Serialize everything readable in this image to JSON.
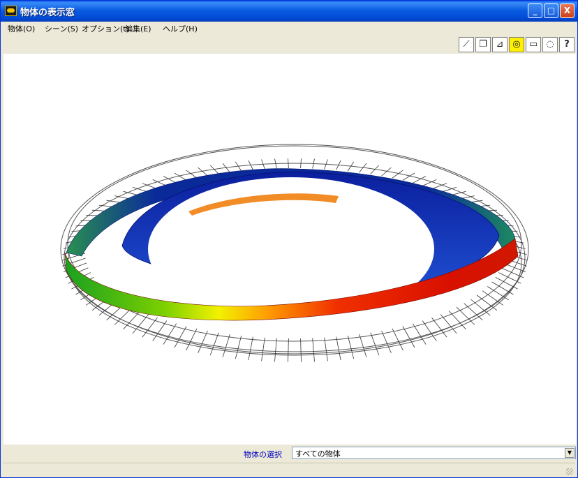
{
  "window": {
    "title": "物体の表示窓"
  },
  "titlebar_buttons": {
    "minimize": "_",
    "maximize": "□",
    "close": "X"
  },
  "menu": [
    {
      "label": "物体(O)"
    },
    {
      "label": "シーン(S)"
    },
    {
      "label": "オプション(t)"
    },
    {
      "label": "編集(E)"
    },
    {
      "label": "ヘルプ(H)"
    }
  ],
  "toolbar": {
    "tools": [
      {
        "icon": "ruler-icon",
        "glyph": "⟋"
      },
      {
        "icon": "copy-view-icon",
        "glyph": "❐"
      },
      {
        "icon": "axes-icon",
        "glyph": "⊿"
      },
      {
        "icon": "fit-view-icon",
        "glyph": "◎",
        "active": true
      },
      {
        "icon": "box-view-icon",
        "glyph": "▭"
      },
      {
        "icon": "mouse-icon",
        "glyph": "◌"
      },
      {
        "icon": "help-icon",
        "glyph": "?"
      }
    ]
  },
  "object_select": {
    "label": "物体の選択",
    "value": "すべての物体"
  },
  "colors": {
    "band_inner": "#0a1fa0",
    "band_mid": "#20d060",
    "band_peak": "#f0f000",
    "band_hot": "#e01000",
    "wireframe": "#555555"
  }
}
